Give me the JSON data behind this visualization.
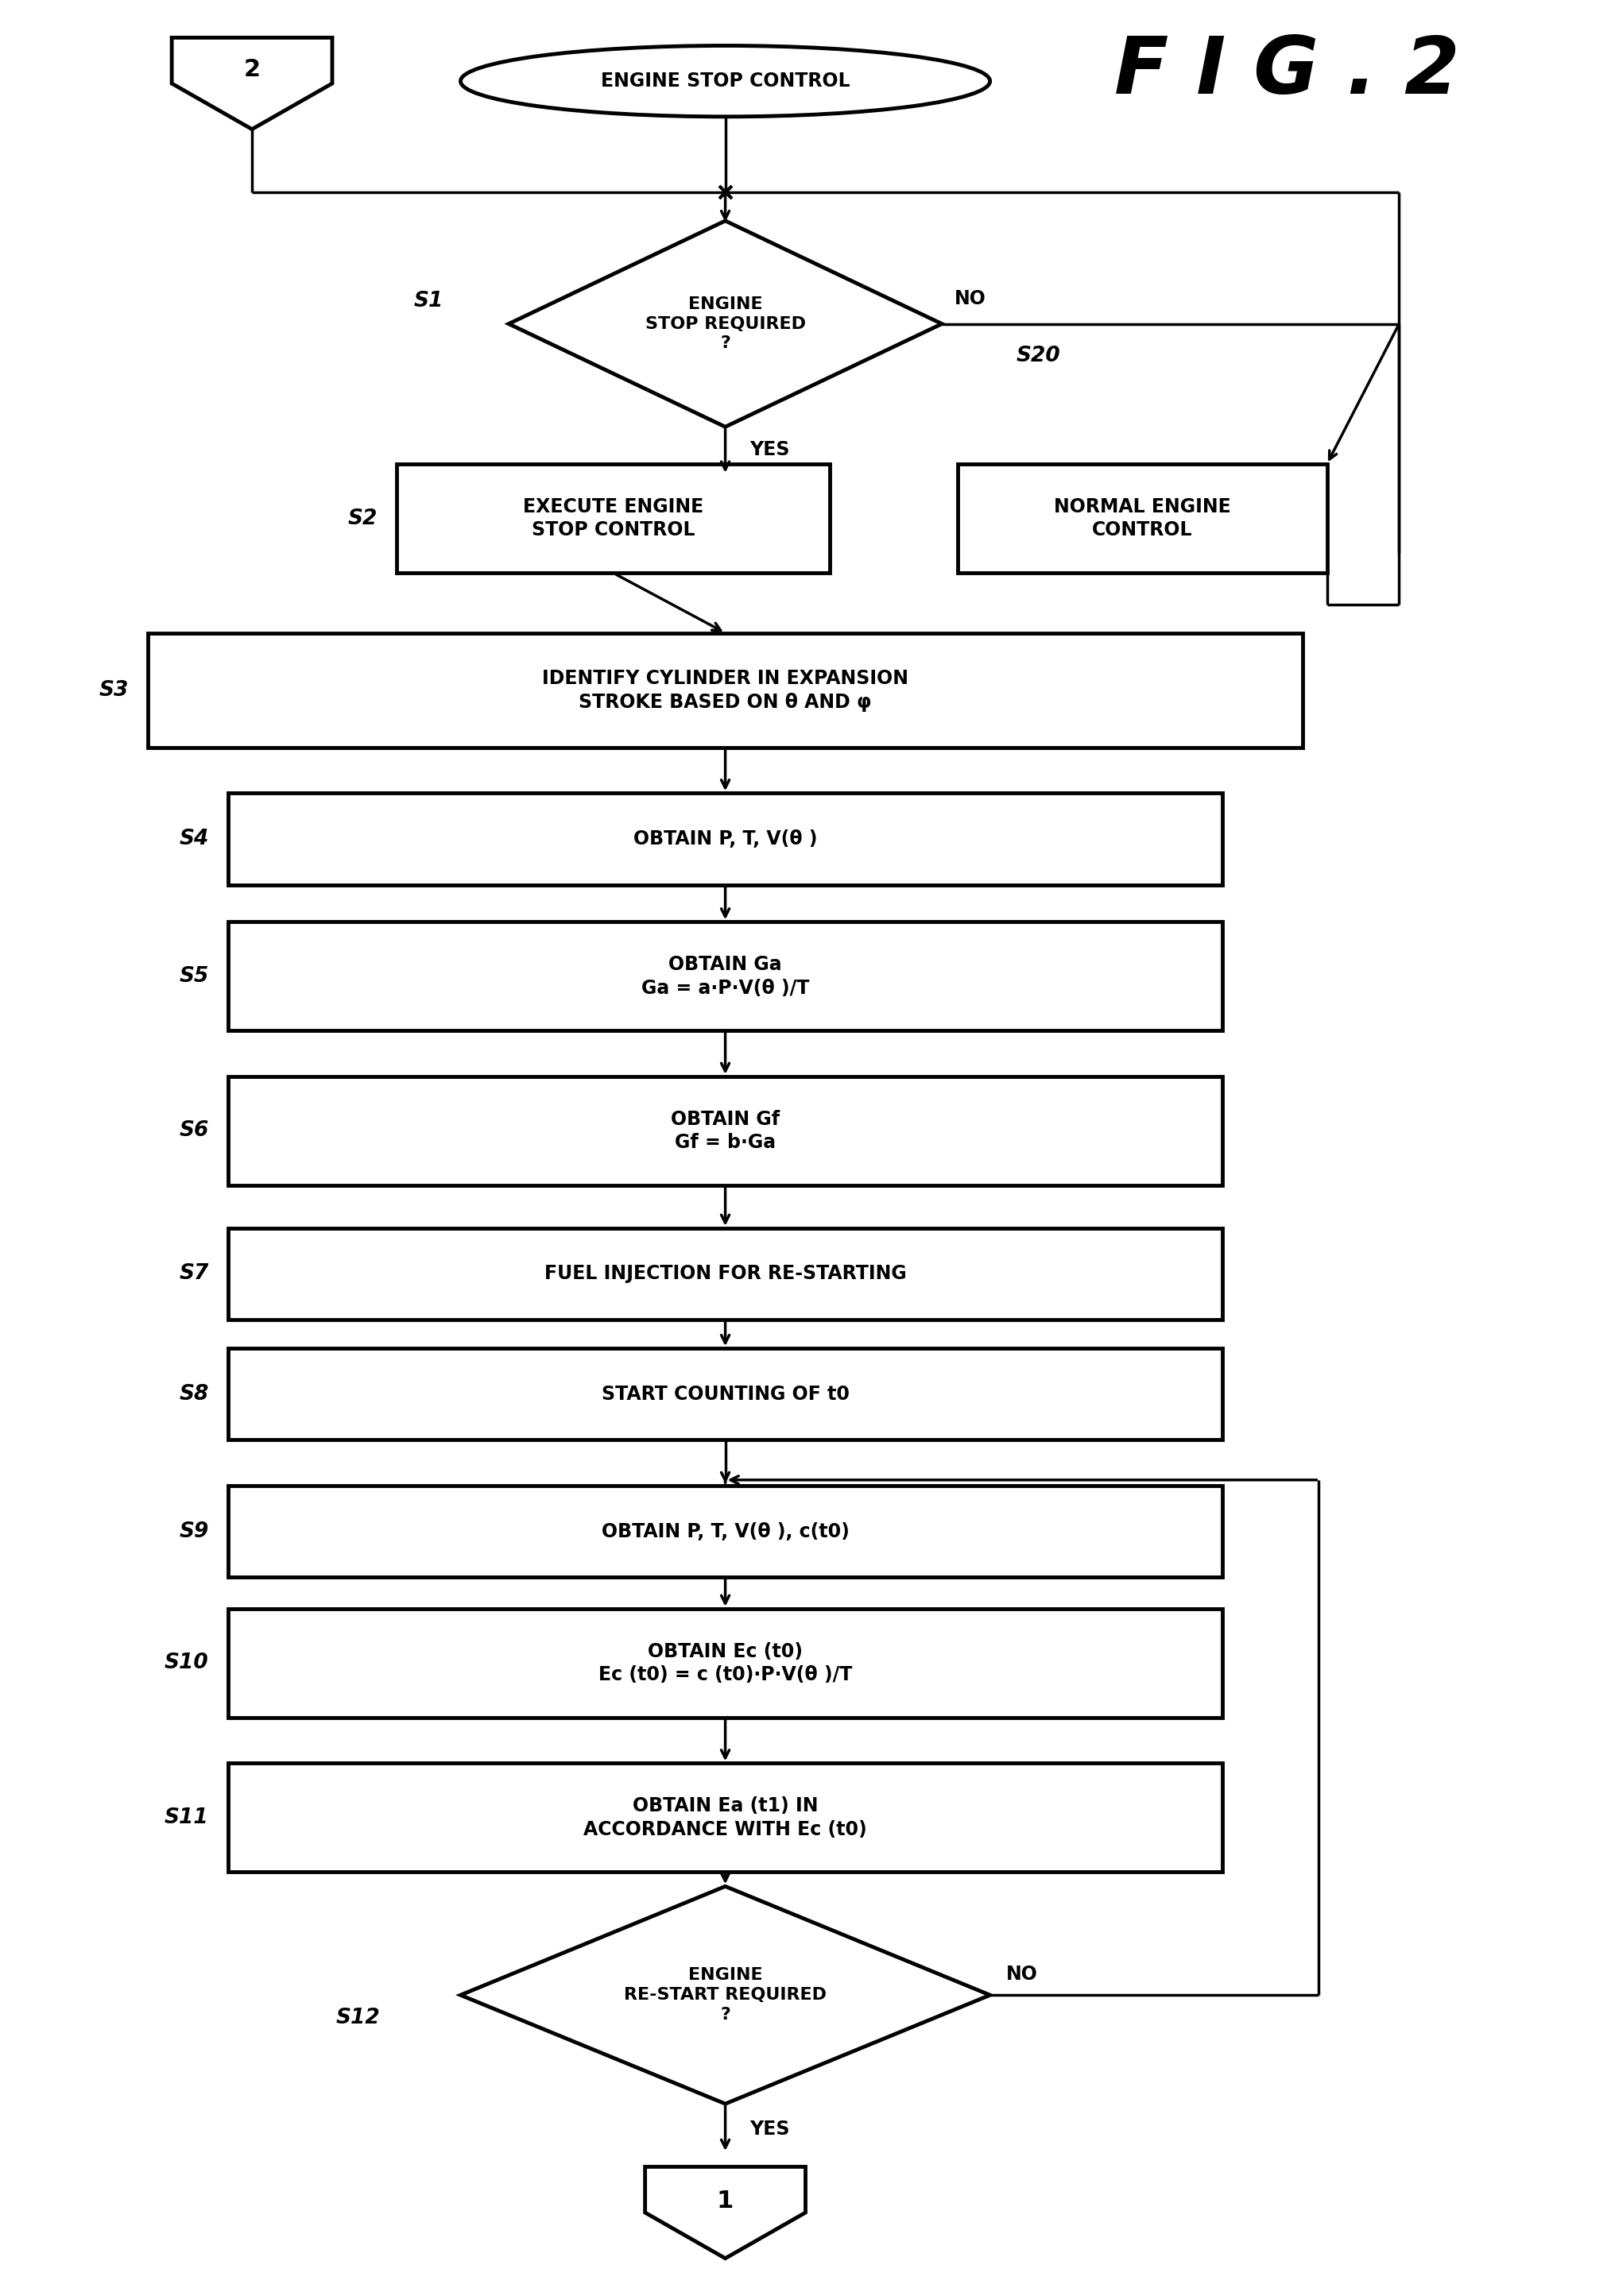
{
  "bg_color": "#ffffff",
  "title": "F I G . 2",
  "fig_w": 20.27,
  "fig_h": 28.9,
  "shapes": {
    "oval_label": "ENGINE STOP CONTROL",
    "diamond1_label": "ENGINE\nSTOP REQUIRED\n?",
    "s1_label": "S1",
    "s2_label": "S2",
    "s20_label": "S20",
    "box_s2_label": "EXECUTE ENGINE\nSTOP CONTROL",
    "box_s20_label": "NORMAL ENGINE\nCONTROL",
    "box_s3_label": "IDENTIFY CYLINDER IN EXPANSION\nSTROKE BASED ON θ AND φ",
    "s3_label": "S3",
    "box_s4_label": "OBTAIN P, T, V(θ )",
    "s4_label": "S4",
    "box_s5_label": "OBTAIN Ga\nGa = a·P·V(θ )/T",
    "s5_label": "S5",
    "box_s6_label": "OBTAIN Gf\nGf = b·Ga",
    "s6_label": "S6",
    "box_s7_label": "FUEL INJECTION FOR RE-STARTING",
    "s7_label": "S7",
    "box_s8_label": "START COUNTING OF t0",
    "s8_label": "S8",
    "box_s9_label": "OBTAIN P, T, V(θ ), c(t0)",
    "s9_label": "S9",
    "box_s10_label": "OBTAIN Ec (t0)\nEc (t0) = c (t0)·P·V(θ )/T",
    "s10_label": "S10",
    "box_s11_label": "OBTAIN Ea (t1) IN\nACCORDANCE WITH Ec (t0)",
    "s11_label": "S11",
    "diamond2_label": "ENGINE\nRE-START REQUIRED\n?",
    "s12_label": "S12",
    "yes_label": "YES",
    "no_label": "NO",
    "fig2_label": "2",
    "end_label": "1"
  }
}
